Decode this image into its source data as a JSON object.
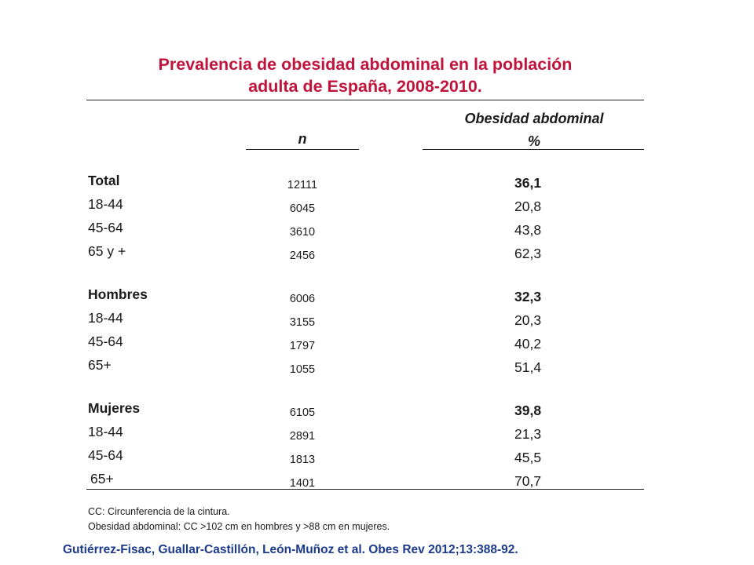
{
  "title_line1": "Prevalencia de obesidad abdominal en la población",
  "title_line2": "adulta de España, 2008-2010.",
  "header": {
    "n": "n",
    "obesity_line1": "Obesidad abdominal",
    "obesity_line2": "%"
  },
  "rows": [
    {
      "label": "Total",
      "n": "12111",
      "pct": "36,1",
      "bold": true
    },
    {
      "label": "18-44",
      "n": "6045",
      "pct": "20,8",
      "bold": false
    },
    {
      "label": "45-64",
      "n": "3610",
      "pct": "43,8",
      "bold": false
    },
    {
      "label": "65 y +",
      "n": "2456",
      "pct": "62,3",
      "bold": false
    },
    {
      "label": "Hombres",
      "n": "6006",
      "pct": "32,3",
      "bold": true
    },
    {
      "label": "18-44",
      "n": "3155",
      "pct": "20,3",
      "bold": false
    },
    {
      "label": "45-64",
      "n": "1797",
      "pct": "40,2",
      "bold": false
    },
    {
      "label": "65+",
      "n": "1055",
      "pct": "51,4",
      "bold": false
    },
    {
      "label": "Mujeres",
      "n": "6105",
      "pct": "39,8",
      "bold": true
    },
    {
      "label": "18-44",
      "n": "2891",
      "pct": "21,3",
      "bold": false
    },
    {
      "label": "45-64",
      "n": "1813",
      "pct": "45,5",
      "bold": false
    },
    {
      "label": "65+",
      "n": "1401",
      "pct": "70,7",
      "bold": false
    }
  ],
  "notes": {
    "line1": "CC: Circunferencia de la cintura.",
    "line2": "Obesidad abdominal: CC >102 cm en hombres y >88 cm en mujeres."
  },
  "citation": "Gutiérrez-Fisac, Guallar-Castillón, León-Muñoz et al. Obes Rev 2012;13:388-92.",
  "colors": {
    "title": "#c0143c",
    "citation": "#1b3a8c",
    "text": "#1a1a1a"
  }
}
